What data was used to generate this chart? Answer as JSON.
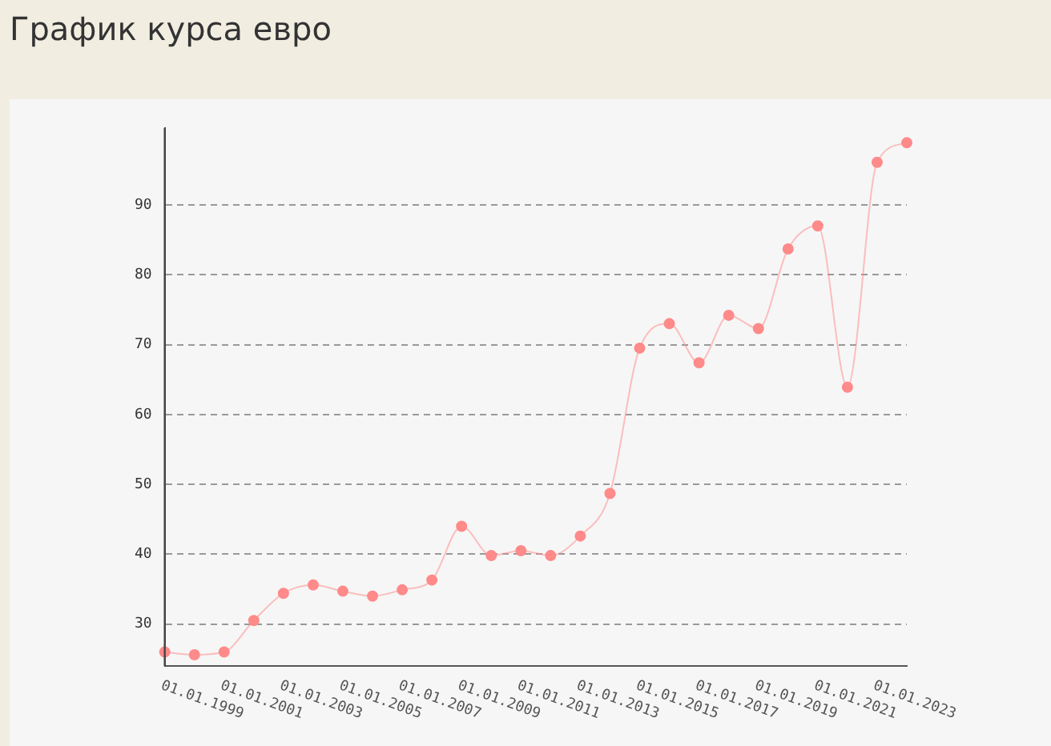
{
  "chart_data": {
    "type": "line",
    "title": "График курса евро",
    "categories": [
      "01.01.1999",
      null,
      "01.01.2001",
      null,
      "01.01.2003",
      null,
      "01.01.2005",
      null,
      "01.01.2007",
      null,
      "01.01.2009",
      null,
      "01.01.2011",
      null,
      "01.01.2013",
      null,
      "01.01.2015",
      null,
      "01.01.2017",
      null,
      "01.01.2019",
      null,
      "01.01.2021",
      null,
      "01.01.2023",
      null
    ],
    "series": [
      {
        "color": "#ff8a8a",
        "values": [
          26.0,
          25.6,
          26.0,
          30.5,
          34.4,
          35.6,
          34.7,
          34.0,
          34.9,
          36.3,
          44.0,
          39.8,
          40.5,
          39.8,
          42.6,
          48.7,
          69.5,
          73.0,
          67.4,
          74.2,
          72.3,
          83.7,
          87.0,
          63.9,
          96.1,
          98.9
        ]
      }
    ],
    "ylim": [
      24,
      101
    ],
    "yticks": [
      30,
      40,
      50,
      60,
      70,
      80,
      90
    ],
    "grid": "y",
    "legend": false,
    "marker": "circle",
    "line_style": "solid"
  }
}
